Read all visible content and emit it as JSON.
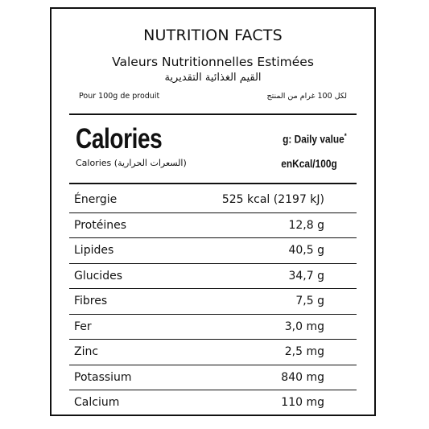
{
  "header": {
    "title": "NUTRITION FACTS",
    "subtitle_fr": "Valeurs Nutritionnelles Estimées",
    "subtitle_ar": "القيم الغذائية التقديرية",
    "per_fr": "Pour 100g de produit",
    "per_ar": "لكل 100 غرام من المنتج"
  },
  "calories": {
    "heading": "Calories",
    "subheading": "Calories (السعرات الحرارية)",
    "daily_value": "g: Daily value",
    "daily_value_mark": "*",
    "unit": "enKcal/100g"
  },
  "nutrients": [
    {
      "name": "Énergie",
      "value": "525 kcal (2197 kJ)"
    },
    {
      "name": "Protéines",
      "value": "12,8 g"
    },
    {
      "name": "Lipides",
      "value": "40,5 g"
    },
    {
      "name": "Glucides",
      "value": "34,7 g"
    },
    {
      "name": "Fibres",
      "value": "7,5 g"
    },
    {
      "name": "Fer",
      "value": "3,0 mg"
    },
    {
      "name": "Zinc",
      "value": "2,5 mg"
    },
    {
      "name": "Potassium",
      "value": "840 mg"
    },
    {
      "name": "Calcium",
      "value": "110 mg"
    }
  ]
}
